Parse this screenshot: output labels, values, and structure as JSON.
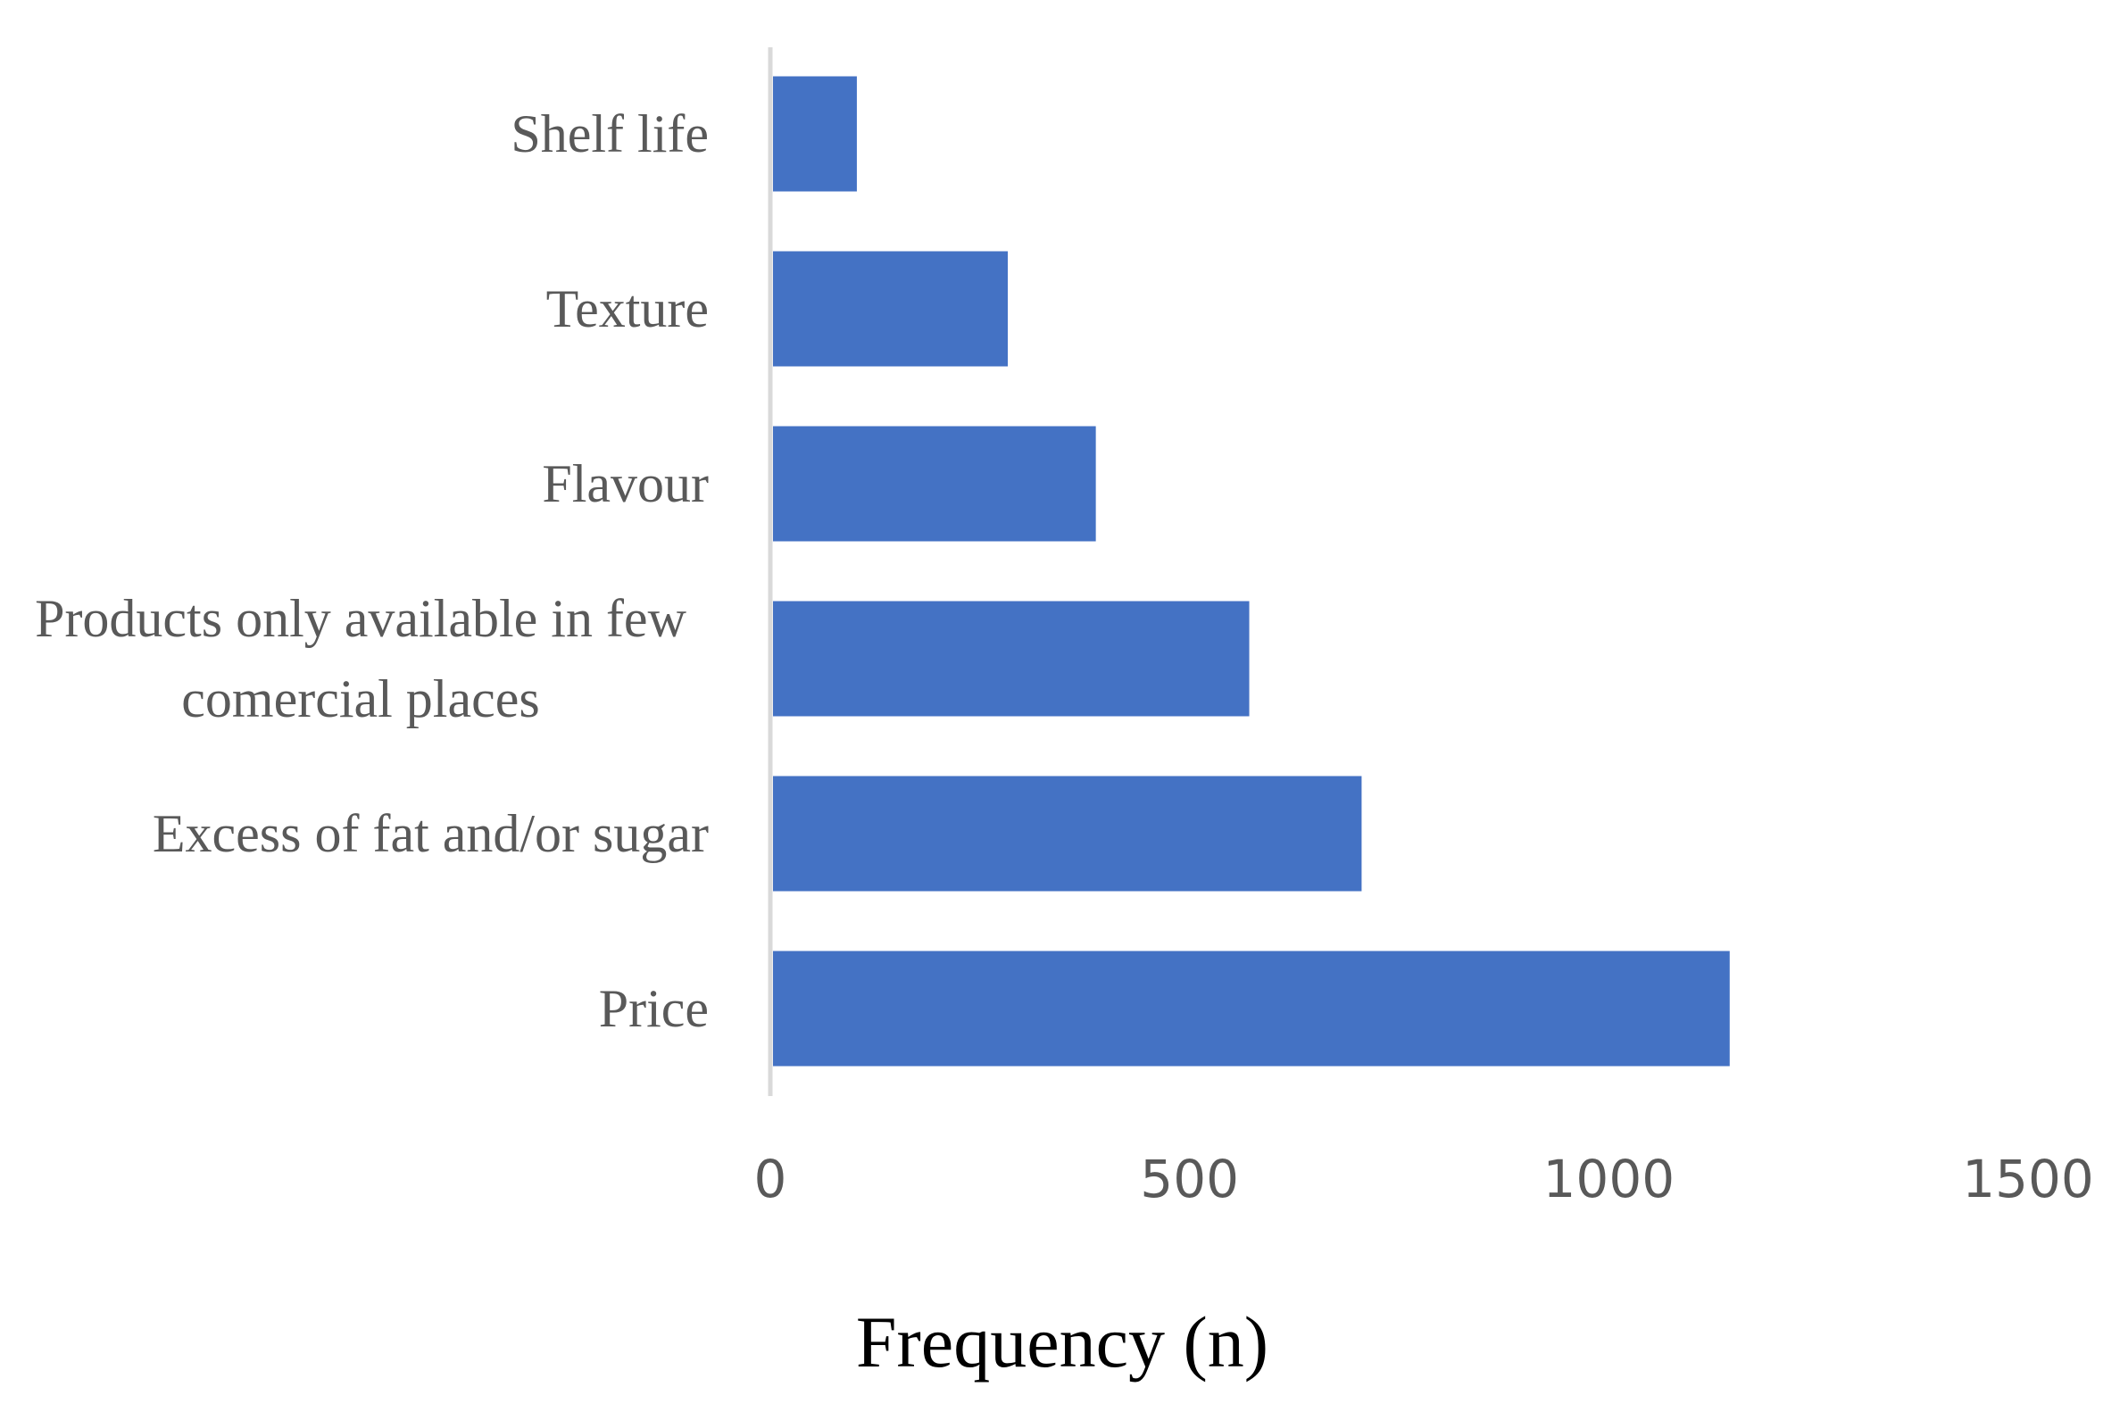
{
  "chart_data": {
    "type": "bar",
    "orientation": "horizontal",
    "categories": [
      "Shelf life",
      "Texture",
      "Flavour",
      "Products only available in few comercial places",
      "Excess of fat and/or sugar",
      "Price"
    ],
    "values": [
      100,
      280,
      385,
      568,
      702,
      1141
    ],
    "color": "#4472c4",
    "x_label": "Frequency (n)",
    "xlim": [
      0,
      1500
    ],
    "xticks": [
      0,
      500,
      1000,
      1500
    ],
    "grid": false
  }
}
